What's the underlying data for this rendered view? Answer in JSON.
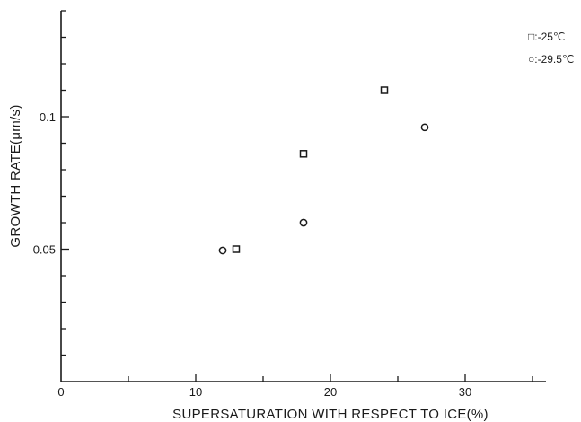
{
  "chart_data": {
    "type": "scatter",
    "title": "",
    "xlabel": "SUPERSATURATION WITH RESPECT TO ICE(%)",
    "ylabel": "GROWTH RATE(μm/s)",
    "xlim": [
      0,
      36
    ],
    "ylim": [
      0,
      0.14
    ],
    "x_ticks": [
      0,
      10,
      20,
      30
    ],
    "y_ticks": [
      0.05,
      0.1
    ],
    "x_tick_labels": [
      "0",
      "10",
      "20",
      "30"
    ],
    "y_tick_labels": [
      "0.05",
      "0.1"
    ],
    "x_minor_step": 5,
    "y_minor_step": 0.01,
    "grid": false,
    "legend_position": "top-right",
    "series": [
      {
        "name": "□:-25℃",
        "marker": "square",
        "points": [
          {
            "x": 13,
            "y": 0.05
          },
          {
            "x": 18,
            "y": 0.086
          },
          {
            "x": 24,
            "y": 0.11
          }
        ]
      },
      {
        "name": "○:-29.5℃",
        "marker": "circle",
        "points": [
          {
            "x": 12,
            "y": 0.0495
          },
          {
            "x": 18,
            "y": 0.06
          },
          {
            "x": 27,
            "y": 0.096
          }
        ]
      }
    ]
  }
}
